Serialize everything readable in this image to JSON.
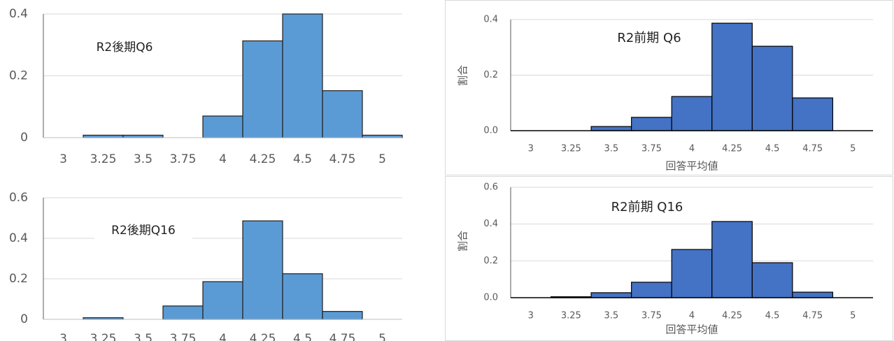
{
  "chart_data": [
    {
      "type": "bar",
      "title": "R2後期Q6",
      "categories": [
        "3",
        "3.25",
        "3.5",
        "3.75",
        "4",
        "4.25",
        "4.5",
        "4.75",
        "5"
      ],
      "values": [
        0,
        0.008,
        0.008,
        0,
        0.07,
        0.313,
        0.4,
        0.152,
        0.008
      ],
      "color": "#5b9bd5",
      "ylim": [
        0,
        0.4
      ],
      "yticks": [
        0,
        0.2,
        0.4
      ],
      "grid": true
    },
    {
      "type": "bar",
      "title": "R2前期 Q6",
      "x_label": "回答平均値",
      "y_label": "割合",
      "categories": [
        "3",
        "3.25",
        "3.5",
        "3.75",
        "4",
        "4.25",
        "4.5",
        "4.75",
        "5"
      ],
      "values": [
        0,
        0,
        0.015,
        0.048,
        0.123,
        0.387,
        0.304,
        0.118,
        0
      ],
      "color": "#4472c4",
      "ylim": [
        0,
        0.4
      ],
      "yticks": [
        {
          "value": 0,
          "label": "0.0"
        },
        0.2,
        0.4
      ],
      "grid": true
    },
    {
      "type": "bar",
      "title": "R2後期Q16",
      "categories": [
        "3",
        "3.25",
        "3.5",
        "3.75",
        "4",
        "4.25",
        "4.5",
        "4.75",
        "5"
      ],
      "values": [
        0,
        0.008,
        0,
        0.066,
        0.186,
        0.486,
        0.225,
        0.039,
        0
      ],
      "color": "#5b9bd5",
      "ylim": [
        0,
        0.6
      ],
      "yticks": [
        0,
        0.2,
        0.4,
        0.6
      ],
      "grid": true
    },
    {
      "type": "bar",
      "title": "R2前期 Q16",
      "x_label": "回答平均値",
      "y_label": "割合",
      "categories": [
        "3",
        "3.25",
        "3.5",
        "3.75",
        "4",
        "4.25",
        "4.5",
        "4.75",
        "5"
      ],
      "values": [
        0,
        0.005,
        0.027,
        0.084,
        0.262,
        0.414,
        0.19,
        0.03,
        0
      ],
      "color": "#4472c4",
      "ylim": [
        0,
        0.6
      ],
      "yticks": [
        {
          "value": 0,
          "label": "0.0"
        },
        0.2,
        0.4,
        0.6
      ],
      "grid": true
    }
  ]
}
